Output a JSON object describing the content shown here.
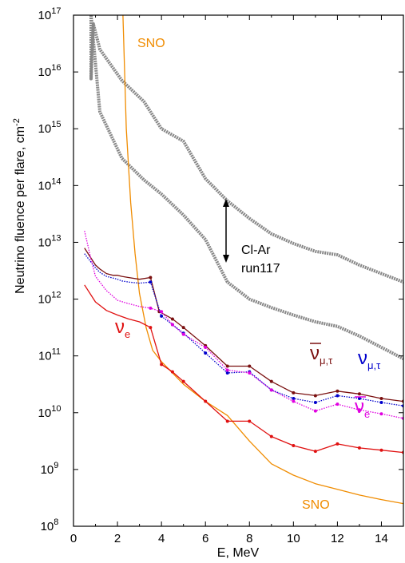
{
  "chart_data": {
    "type": "line",
    "title": "",
    "xlabel": "E, MeV",
    "ylabel": "Neutrino fluence per flare, cm",
    "ylabel_sup": "-2",
    "xlim": [
      0,
      15
    ],
    "ylim_log10": [
      8,
      17
    ],
    "yscale": "log",
    "grid": false,
    "x_ticks": [
      0,
      2,
      4,
      6,
      8,
      10,
      12,
      14
    ],
    "y_ticks_base": "10",
    "y_ticks_exp": [
      8,
      9,
      10,
      11,
      12,
      13,
      14,
      15,
      16,
      17
    ],
    "series": [
      {
        "color": "#888888",
        "points": [
          [
            0.8,
            17
          ],
          [
            0.8,
            15.88
          ],
          [
            0.9,
            16.85
          ],
          [
            1.2,
            16.4
          ],
          [
            2.2,
            15.85
          ],
          [
            3.2,
            15.48
          ],
          [
            4.0,
            15.0
          ],
          [
            5.0,
            14.78
          ],
          [
            6.0,
            14.12
          ],
          [
            7.0,
            13.73
          ],
          [
            8.0,
            13.42
          ],
          [
            9.0,
            13.15
          ],
          [
            10.0,
            12.98
          ],
          [
            11.0,
            12.84
          ],
          [
            12.0,
            12.78
          ],
          [
            13.0,
            12.6
          ],
          [
            14.0,
            12.45
          ],
          [
            15.0,
            12.3
          ]
        ]
      },
      {
        "color": "#888888",
        "points": [
          [
            0.8,
            17
          ],
          [
            1.2,
            15.3
          ],
          [
            2.2,
            14.48
          ],
          [
            3.2,
            14.1
          ],
          [
            4.0,
            13.85
          ],
          [
            5.0,
            13.48
          ],
          [
            6.0,
            13.05
          ],
          [
            7.0,
            12.3
          ],
          [
            8.0,
            12.0
          ],
          [
            9.0,
            11.85
          ],
          [
            10.0,
            11.72
          ],
          [
            11.0,
            11.6
          ],
          [
            12.0,
            11.52
          ],
          [
            13.0,
            11.35
          ],
          [
            14.0,
            11.15
          ],
          [
            15.0,
            10.95
          ]
        ]
      },
      {
        "name": "SNO",
        "color": "#f08c00",
        "points": [
          [
            2.25,
            17
          ],
          [
            2.4,
            15.0
          ],
          [
            2.6,
            13.7
          ],
          [
            2.8,
            12.8
          ],
          [
            3.0,
            12.1
          ],
          [
            3.3,
            11.5
          ],
          [
            3.6,
            11.1
          ],
          [
            4.0,
            10.9
          ],
          [
            4.5,
            10.7
          ],
          [
            5.0,
            10.5
          ],
          [
            6.0,
            10.2
          ],
          [
            7.0,
            9.95
          ],
          [
            8.0,
            9.5
          ],
          [
            9.0,
            9.1
          ],
          [
            10.0,
            8.9
          ],
          [
            11.0,
            8.75
          ],
          [
            12.0,
            8.65
          ],
          [
            13.0,
            8.55
          ],
          [
            14.0,
            8.47
          ],
          [
            15.0,
            8.4
          ]
        ]
      },
      {
        "name": "ν̄μ,τ",
        "color": "#7a1010",
        "points": [
          [
            0.5,
            12.9
          ],
          [
            0.8,
            12.72
          ],
          [
            1.0,
            12.6
          ],
          [
            1.2,
            12.53
          ],
          [
            1.5,
            12.45
          ],
          [
            1.8,
            12.42
          ],
          [
            2.0,
            12.42
          ],
          [
            2.2,
            12.4
          ],
          [
            2.5,
            12.38
          ],
          [
            3.0,
            12.35
          ],
          [
            3.5,
            12.38
          ],
          [
            3.9,
            11.78
          ],
          [
            4.5,
            11.65
          ],
          [
            5.0,
            11.5
          ],
          [
            6.0,
            11.18
          ],
          [
            7.0,
            10.82
          ],
          [
            8.0,
            10.82
          ],
          [
            9.0,
            10.55
          ],
          [
            10.0,
            10.35
          ],
          [
            11.0,
            10.3
          ],
          [
            12.0,
            10.38
          ],
          [
            13.0,
            10.33
          ],
          [
            14.0,
            10.25
          ],
          [
            15.0,
            10.2
          ]
        ]
      },
      {
        "name": "νμ,τ",
        "color": "#0000cc",
        "points": [
          [
            0.5,
            12.8
          ],
          [
            0.8,
            12.65
          ],
          [
            1.0,
            12.55
          ],
          [
            1.2,
            12.47
          ],
          [
            1.5,
            12.4
          ],
          [
            1.8,
            12.37
          ],
          [
            2.0,
            12.35
          ],
          [
            2.2,
            12.32
          ],
          [
            2.5,
            12.3
          ],
          [
            3.0,
            12.28
          ],
          [
            3.5,
            12.3
          ],
          [
            4.0,
            11.7
          ],
          [
            4.5,
            11.55
          ],
          [
            5.0,
            11.4
          ],
          [
            6.0,
            11.05
          ],
          [
            7.0,
            10.7
          ],
          [
            8.0,
            10.72
          ],
          [
            9.0,
            10.4
          ],
          [
            10.0,
            10.25
          ],
          [
            11.0,
            10.18
          ],
          [
            12.0,
            10.3
          ],
          [
            13.0,
            10.25
          ],
          [
            14.0,
            10.18
          ],
          [
            15.0,
            10.12
          ]
        ]
      },
      {
        "name": "ν̄e",
        "color": "#e000e0",
        "points": [
          [
            0.5,
            13.2
          ],
          [
            0.8,
            12.7
          ],
          [
            1.0,
            12.4
          ],
          [
            1.5,
            12.15
          ],
          [
            2.0,
            11.98
          ],
          [
            2.5,
            11.92
          ],
          [
            3.0,
            11.87
          ],
          [
            3.5,
            11.84
          ],
          [
            4.0,
            11.78
          ],
          [
            4.5,
            11.55
          ],
          [
            5.0,
            11.38
          ],
          [
            6.0,
            11.15
          ],
          [
            7.0,
            10.75
          ],
          [
            8.0,
            10.7
          ],
          [
            9.0,
            10.4
          ],
          [
            10.0,
            10.2
          ],
          [
            11.0,
            10.03
          ],
          [
            12.0,
            10.15
          ],
          [
            13.0,
            10.05
          ],
          [
            14.0,
            9.98
          ],
          [
            15.0,
            9.9
          ]
        ]
      },
      {
        "name": "νe",
        "color": "#e01010",
        "points": [
          [
            0.5,
            12.25
          ],
          [
            1.0,
            11.95
          ],
          [
            1.5,
            11.8
          ],
          [
            2.0,
            11.72
          ],
          [
            2.5,
            11.65
          ],
          [
            3.0,
            11.6
          ],
          [
            3.5,
            11.5
          ],
          [
            4.0,
            10.85
          ],
          [
            4.5,
            10.72
          ],
          [
            5.0,
            10.55
          ],
          [
            6.0,
            10.2
          ],
          [
            7.0,
            9.85
          ],
          [
            8.0,
            9.85
          ],
          [
            9.0,
            9.58
          ],
          [
            10.0,
            9.42
          ],
          [
            11.0,
            9.32
          ],
          [
            12.0,
            9.45
          ],
          [
            13.0,
            9.38
          ],
          [
            14.0,
            9.34
          ],
          [
            15.0,
            9.3
          ]
        ]
      }
    ],
    "annotations": {
      "sno_top": "SNO",
      "sno_bottom": "SNO",
      "clar_1": "Cl-Ar",
      "clar_2": "run117",
      "nu_e": "ν",
      "nu_e_sub": "e",
      "nu_mutau": "ν",
      "nu_mutau_sub": "μ,τ",
      "anu_mutau": "ν",
      "anu_mutau_sub": "μ,τ",
      "anu_e": "ν",
      "anu_e_sub": "e"
    }
  }
}
